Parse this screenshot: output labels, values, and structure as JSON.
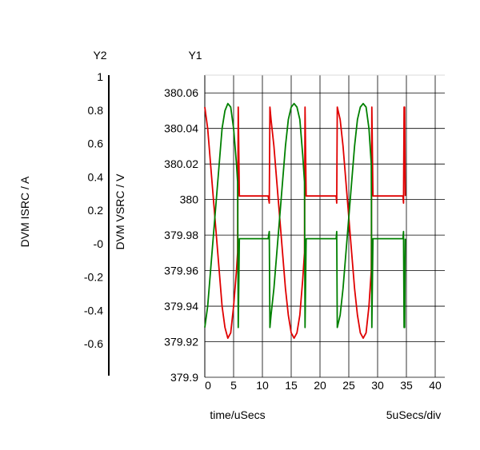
{
  "chart_data": {
    "type": "line",
    "xlabel": "time/uSecs",
    "x_scale_note": "5uSecs/div",
    "xlim": [
      0,
      40
    ],
    "x_ticks": [
      "0",
      "5",
      "10",
      "15",
      "20",
      "25",
      "30",
      "35",
      "40"
    ],
    "y1": {
      "axis_header": "Y1",
      "label": "DVM VSRC / V",
      "ylim": [
        379.9,
        380.07
      ],
      "ticks": [
        "380.06",
        "380.04",
        "380.02",
        "380",
        "379.98",
        "379.96",
        "379.94",
        "379.92",
        "379.9"
      ]
    },
    "y2": {
      "axis_header": "Y2",
      "label": "DVM ISRC / A",
      "ylim": [
        -0.8,
        1.0
      ],
      "ticks": [
        "1",
        "0.8",
        "0.6",
        "0.4",
        "0.2",
        "-0",
        "-0.2",
        "-0.4",
        "-0.6"
      ]
    },
    "grid": true,
    "series": [
      {
        "axis": "y1",
        "color": "#e00000",
        "x": [
          0.0,
          0.5,
          1.0,
          1.5,
          2.0,
          2.5,
          3.0,
          3.5,
          4.0,
          4.5,
          5.0,
          5.5,
          5.7,
          5.8,
          6.0,
          8.0,
          11.0,
          11.2,
          11.3,
          11.5,
          12.0,
          12.5,
          13.0,
          13.5,
          14.0,
          14.5,
          15.0,
          15.5,
          16.0,
          16.5,
          17.0,
          17.3,
          17.4,
          17.6,
          20.0,
          22.8,
          22.9,
          23.0,
          23.5,
          24.0,
          24.5,
          25.0,
          25.5,
          26.0,
          26.5,
          27.0,
          27.5,
          28.0,
          28.5,
          28.9,
          29.0,
          29.2,
          32.0,
          34.4,
          34.5,
          34.6,
          34.7,
          34.8
        ],
        "y": [
          380.052,
          380.04,
          380.02,
          380.0,
          379.98,
          379.96,
          379.94,
          379.928,
          379.922,
          379.925,
          379.94,
          379.96,
          379.97,
          380.052,
          380.002,
          380.002,
          380.002,
          379.998,
          380.052,
          380.045,
          380.03,
          380.01,
          379.99,
          379.97,
          379.95,
          379.935,
          379.925,
          379.922,
          379.925,
          379.935,
          379.955,
          379.97,
          380.052,
          380.002,
          380.002,
          380.002,
          379.998,
          380.052,
          380.045,
          380.03,
          380.01,
          379.99,
          379.97,
          379.95,
          379.935,
          379.925,
          379.922,
          379.925,
          379.94,
          379.96,
          380.052,
          380.002,
          380.002,
          380.002,
          379.998,
          380.052,
          380.052,
          380.002
        ]
      },
      {
        "axis": "y1",
        "color": "#008000",
        "x": [
          0.0,
          0.5,
          1.0,
          1.5,
          2.0,
          2.5,
          3.0,
          3.5,
          4.0,
          4.5,
          5.0,
          5.5,
          5.7,
          5.8,
          6.0,
          8.0,
          11.0,
          11.2,
          11.3,
          11.5,
          12.0,
          12.5,
          13.0,
          13.5,
          14.0,
          14.5,
          15.0,
          15.5,
          16.0,
          16.5,
          17.0,
          17.3,
          17.4,
          17.6,
          20.0,
          22.8,
          22.9,
          23.0,
          23.5,
          24.0,
          24.5,
          25.0,
          25.5,
          26.0,
          26.5,
          27.0,
          27.5,
          28.0,
          28.5,
          28.9,
          29.0,
          29.2,
          32.0,
          34.4,
          34.5,
          34.6,
          34.7,
          34.8
        ],
        "y": [
          379.928,
          379.94,
          379.96,
          379.98,
          380.0,
          380.02,
          380.04,
          380.05,
          380.054,
          380.052,
          380.04,
          380.02,
          380.01,
          379.928,
          379.978,
          379.978,
          379.978,
          379.982,
          379.928,
          379.935,
          379.95,
          379.97,
          379.99,
          380.01,
          380.03,
          380.045,
          380.052,
          380.054,
          380.052,
          380.045,
          380.025,
          380.01,
          379.928,
          379.978,
          379.978,
          379.978,
          379.982,
          379.928,
          379.935,
          379.95,
          379.97,
          379.99,
          380.01,
          380.03,
          380.045,
          380.052,
          380.054,
          380.052,
          380.04,
          380.02,
          379.928,
          379.978,
          379.978,
          379.978,
          379.982,
          379.928,
          379.928,
          379.978
        ]
      }
    ]
  }
}
